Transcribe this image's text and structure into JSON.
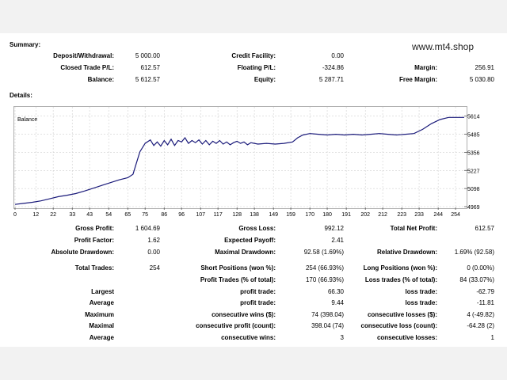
{
  "header": {
    "summary_label": "Summary:",
    "site": "www.mt4.shop",
    "details_label": "Details:"
  },
  "summary": {
    "deposit_label": "Deposit/Withdrawal:",
    "deposit_value": "5 000.00",
    "credit_label": "Credit Facility:",
    "credit_value": "0.00",
    "closed_pl_label": "Closed Trade P/L:",
    "closed_pl_value": "612.57",
    "floating_pl_label": "Floating P/L:",
    "floating_pl_value": "-324.86",
    "margin_label": "Margin:",
    "margin_value": "256.91",
    "balance_label": "Balance:",
    "balance_value": "5 612.57",
    "equity_label": "Equity:",
    "equity_value": "5 287.71",
    "free_margin_label": "Free Margin:",
    "free_margin_value": "5 030.80"
  },
  "stats": {
    "gross_profit_label": "Gross Profit:",
    "gross_profit_value": "1 604.69",
    "gross_loss_label": "Gross Loss:",
    "gross_loss_value": "992.12",
    "net_profit_label": "Total Net Profit:",
    "net_profit_value": "612.57",
    "profit_factor_label": "Profit Factor:",
    "profit_factor_value": "1.62",
    "expected_payoff_label": "Expected Payoff:",
    "expected_payoff_value": "2.41",
    "abs_dd_label": "Absolute Drawdown:",
    "abs_dd_value": "0.00",
    "max_dd_label": "Maximal Drawdown:",
    "max_dd_value": "92.58 (1.69%)",
    "rel_dd_label": "Relative Drawdown:",
    "rel_dd_value": "1.69% (92.58)",
    "total_trades_label": "Total Trades:",
    "total_trades_value": "254",
    "short_pos_label": "Short Positions (won %):",
    "short_pos_value": "254 (66.93%)",
    "long_pos_label": "Long Positions (won %):",
    "long_pos_value": "0 (0.00%)",
    "profit_trades_label": "Profit Trades (% of total):",
    "profit_trades_value": "170 (66.93%)",
    "loss_trades_label": "Loss trades (% of total):",
    "loss_trades_value": "84 (33.07%)",
    "largest_label": "Largest",
    "largest_profit_label": "profit trade:",
    "largest_profit_value": "66.30",
    "largest_loss_label": "loss trade:",
    "largest_loss_value": "-62.79",
    "average_label": "Average",
    "average_profit_label": "profit trade:",
    "average_profit_value": "9.44",
    "average_loss_label": "loss trade:",
    "average_loss_value": "-11.81",
    "maximum_label": "Maximum",
    "max_cons_wins_label": "consecutive wins ($):",
    "max_cons_wins_value": "74 (398.04)",
    "max_cons_losses_label": "consecutive losses ($):",
    "max_cons_losses_value": "4 (-49.82)",
    "maximal_label": "Maximal",
    "maximal_cons_profit_label": "consecutive profit (count):",
    "maximal_cons_profit_value": "398.04 (74)",
    "maximal_cons_loss_label": "consecutive loss (count):",
    "maximal_cons_loss_value": "-64.28 (2)",
    "average2_label": "Average",
    "avg_cons_wins_label": "consecutive wins:",
    "avg_cons_wins_value": "3",
    "avg_cons_losses_label": "consecutive losses:",
    "avg_cons_losses_value": "1"
  },
  "chart_data": {
    "type": "line",
    "title": "Balance",
    "line_color": "#1a1a7a",
    "grid": true,
    "x_ticks": [
      0,
      12,
      22,
      33,
      43,
      54,
      65,
      75,
      86,
      96,
      107,
      117,
      128,
      138,
      149,
      159,
      170,
      180,
      191,
      202,
      212,
      223,
      233,
      244,
      254
    ],
    "y_ticks": [
      4969,
      5098,
      5227,
      5356,
      5485,
      5614
    ],
    "xlim": [
      0,
      259
    ],
    "ylim": [
      4969,
      5635
    ],
    "x": [
      0,
      5,
      10,
      15,
      20,
      25,
      30,
      35,
      40,
      45,
      50,
      55,
      60,
      65,
      68,
      70,
      72,
      75,
      78,
      80,
      82,
      84,
      86,
      88,
      90,
      92,
      94,
      96,
      98,
      100,
      102,
      104,
      106,
      108,
      110,
      112,
      114,
      116,
      118,
      120,
      122,
      124,
      126,
      128,
      130,
      132,
      134,
      136,
      138,
      140,
      145,
      150,
      155,
      160,
      163,
      166,
      170,
      175,
      180,
      185,
      190,
      195,
      200,
      205,
      210,
      215,
      220,
      225,
      230,
      235,
      240,
      245,
      250,
      255,
      259
    ],
    "y": [
      4985,
      4992,
      5000,
      5010,
      5025,
      5040,
      5050,
      5062,
      5080,
      5100,
      5120,
      5140,
      5160,
      5175,
      5200,
      5280,
      5360,
      5420,
      5445,
      5405,
      5430,
      5400,
      5440,
      5410,
      5450,
      5405,
      5440,
      5430,
      5460,
      5420,
      5440,
      5425,
      5445,
      5415,
      5440,
      5410,
      5435,
      5420,
      5440,
      5415,
      5430,
      5410,
      5425,
      5435,
      5420,
      5430,
      5410,
      5425,
      5420,
      5415,
      5420,
      5415,
      5420,
      5430,
      5460,
      5480,
      5490,
      5485,
      5480,
      5485,
      5480,
      5485,
      5480,
      5485,
      5490,
      5485,
      5480,
      5485,
      5490,
      5520,
      5560,
      5590,
      5605,
      5605,
      5605
    ]
  }
}
